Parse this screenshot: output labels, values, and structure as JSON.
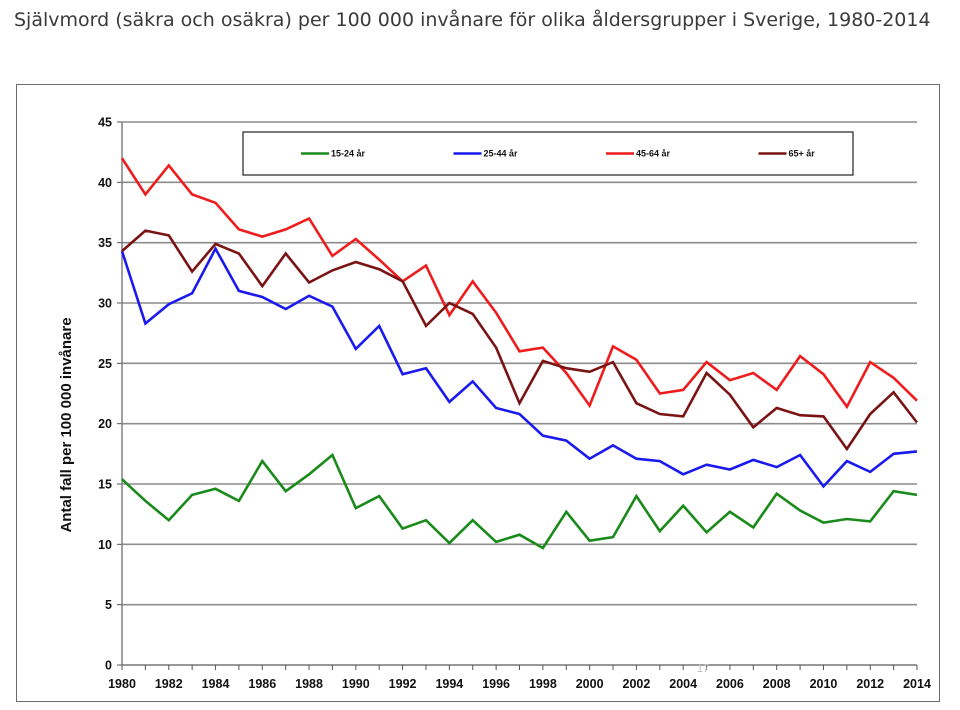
{
  "page": {
    "title": "Självmord (säkra och osäkra) per 100 000 invånare för olika åldersgrupper i Sverige, 1980-2014"
  },
  "chart_data": {
    "type": "line",
    "title": "",
    "xlabel": "",
    "ylabel": "Antal fall per 100 000 invånare",
    "ylim": [
      0,
      45
    ],
    "yticks": [
      0,
      5,
      10,
      15,
      20,
      25,
      30,
      35,
      40,
      45
    ],
    "xlim": [
      1980,
      2014
    ],
    "xticks": [
      "1980",
      "1982",
      "1984",
      "1986",
      "1988",
      "1990",
      "1992",
      "1994",
      "1996",
      "1998",
      "2000",
      "2002",
      "2004",
      "2006",
      "2008",
      "2010",
      "2012",
      "2014"
    ],
    "grid": "horizontal",
    "legend_position": "top",
    "watermark": "17",
    "x": [
      1980,
      1981,
      1982,
      1983,
      1984,
      1985,
      1986,
      1987,
      1988,
      1989,
      1990,
      1991,
      1992,
      1993,
      1994,
      1995,
      1996,
      1997,
      1998,
      1999,
      2000,
      2001,
      2002,
      2003,
      2004,
      2005,
      2006,
      2007,
      2008,
      2009,
      2010,
      2011,
      2012,
      2013,
      2014
    ],
    "series": [
      {
        "name": "15-24 år",
        "color": "#1a8a1a",
        "values": [
          15.4,
          13.6,
          12.0,
          14.1,
          14.6,
          13.6,
          16.9,
          14.4,
          15.8,
          17.4,
          13.0,
          14.0,
          11.3,
          12.0,
          10.1,
          12.0,
          10.2,
          10.8,
          9.7,
          12.7,
          10.3,
          10.6,
          14.0,
          11.1,
          13.2,
          11.0,
          12.7,
          11.4,
          14.2,
          12.8,
          11.8,
          12.1,
          11.9,
          14.4,
          14.1
        ]
      },
      {
        "name": "25-44 år",
        "color": "#1a1aee",
        "values": [
          34.3,
          28.3,
          29.9,
          30.8,
          34.5,
          31.0,
          30.5,
          29.5,
          30.6,
          29.7,
          26.2,
          28.1,
          24.1,
          24.6,
          21.8,
          23.5,
          21.3,
          20.8,
          19.0,
          18.6,
          17.1,
          18.2,
          17.1,
          16.9,
          15.8,
          16.6,
          16.2,
          17.0,
          16.4,
          17.4,
          14.8,
          16.9,
          16.0,
          17.5,
          17.7
        ]
      },
      {
        "name": "45-64 år",
        "color": "#ee1c1c",
        "values": [
          42.0,
          39.0,
          41.4,
          39.0,
          38.3,
          36.1,
          35.5,
          36.1,
          37.0,
          33.9,
          35.3,
          33.6,
          31.8,
          33.1,
          29.0,
          31.8,
          29.2,
          26.0,
          26.3,
          24.2,
          21.5,
          26.4,
          25.3,
          22.5,
          22.8,
          25.1,
          23.6,
          24.2,
          22.8,
          25.6,
          24.1,
          21.4,
          25.1,
          23.8,
          21.9
        ]
      },
      {
        "name": "65+ år",
        "color": "#7a1414",
        "values": [
          34.3,
          36.0,
          35.6,
          32.6,
          34.9,
          34.1,
          31.4,
          34.1,
          31.7,
          32.7,
          33.4,
          32.8,
          31.8,
          28.1,
          30.0,
          29.1,
          26.3,
          21.7,
          25.2,
          24.6,
          24.3,
          25.1,
          21.7,
          20.8,
          20.6,
          24.2,
          22.4,
          19.7,
          21.3,
          20.7,
          20.6,
          17.9,
          20.8,
          22.6,
          20.1
        ]
      }
    ]
  }
}
